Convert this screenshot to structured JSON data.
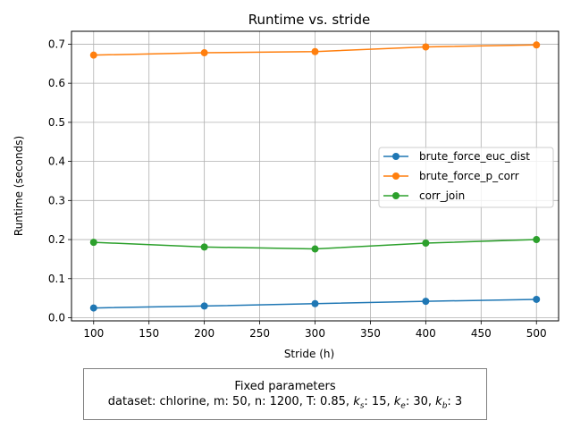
{
  "chart_data": {
    "type": "line",
    "title": "Runtime vs. stride",
    "xlabel": "Stride (h)",
    "ylabel": "Runtime (seconds)",
    "x": [
      100,
      200,
      300,
      400,
      500
    ],
    "xlim": [
      80,
      520
    ],
    "ylim": [
      -0.008,
      0.733
    ],
    "xticks": [
      100,
      150,
      200,
      250,
      300,
      350,
      400,
      450,
      500
    ],
    "yticks": [
      0.0,
      0.1,
      0.2,
      0.3,
      0.4,
      0.5,
      0.6,
      0.7
    ],
    "grid": true,
    "legend_position": "center-right",
    "series": [
      {
        "name": "brute_force_euc_dist",
        "color": "#1f77b4",
        "values": [
          0.025,
          0.03,
          0.036,
          0.042,
          0.047
        ]
      },
      {
        "name": "brute_force_p_corr",
        "color": "#ff7f0e",
        "values": [
          0.672,
          0.678,
          0.681,
          0.693,
          0.698
        ]
      },
      {
        "name": "corr_join",
        "color": "#2ca02c",
        "values": [
          0.193,
          0.181,
          0.176,
          0.191,
          0.2
        ]
      }
    ]
  },
  "params_box": {
    "heading": "Fixed parameters",
    "line_prefix": "dataset: chlorine, m: 50, n: 1200, T: 0.85, ",
    "ks_label": "k",
    "ks_sub": "s",
    "ks_value": ": 15, ",
    "ke_label": "k",
    "ke_sub": "e",
    "ke_value": ": 30, ",
    "kb_label": "k",
    "kb_sub": "b",
    "kb_value": ": 3"
  }
}
